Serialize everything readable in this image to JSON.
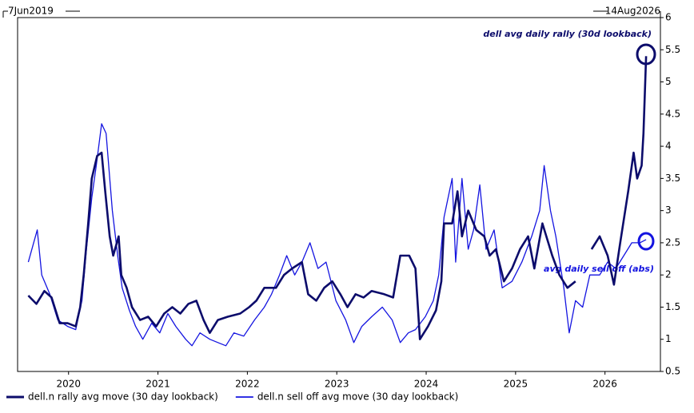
{
  "chart_data": {
    "type": "line",
    "range_start_label": "7Jun2019",
    "range_end_label": "14Aug2026",
    "annotations": [
      "dell avg daily rally (30d lookback)",
      "avg daily sell off (abs)"
    ],
    "xlim": [
      2019.43,
      2026.62
    ],
    "xticks": [
      2020,
      2021,
      2022,
      2023,
      2024,
      2025,
      2026
    ],
    "ylim": [
      0.5,
      6
    ],
    "yticks": [
      0.5,
      1,
      1.5,
      2,
      2.5,
      3,
      3.5,
      4,
      4.5,
      5,
      5.5,
      6
    ],
    "grid": false,
    "legend_position": "bottom",
    "series": [
      {
        "name": "dell.n rally avg move (30 day lookback)",
        "color": "#0c0c6b",
        "width": 2.6,
        "x": [
          2019.55,
          2019.64,
          2019.73,
          2019.81,
          2019.9,
          2019.99,
          2020.08,
          2020.13,
          2020.17,
          2020.22,
          2020.26,
          2020.32,
          2020.37,
          2020.41,
          2020.46,
          2020.5,
          2020.56,
          2020.59,
          2020.65,
          2020.71,
          2020.8,
          2020.89,
          2020.98,
          2021.07,
          2021.16,
          2021.25,
          2021.34,
          2021.43,
          2021.51,
          2021.58,
          2021.67,
          2021.78,
          2021.92,
          2022.02,
          2022.1,
          2022.19,
          2022.32,
          2022.41,
          2022.5,
          2022.61,
          2022.68,
          2022.77,
          2022.86,
          2022.95,
          2023.04,
          2023.12,
          2023.21,
          2023.3,
          2023.39,
          2023.53,
          2023.63,
          2023.71,
          2023.81,
          2023.88,
          2023.93,
          2024.02,
          2024.11,
          2024.17,
          2024.2,
          2024.29,
          2024.35,
          2024.4,
          2024.47,
          2024.56,
          2024.65,
          2024.71,
          2024.78,
          2024.87,
          2024.96,
          2025.05,
          2025.14,
          2025.21,
          2025.3,
          2025.41,
          2025.49,
          2025.58,
          2025.67,
          2025.76,
          2025.85,
          2025.94,
          2026.03,
          2026.1,
          2026.17,
          2026.26,
          2026.32,
          2026.36,
          2026.41,
          2026.43,
          2026.46
        ],
        "values": [
          1.68,
          1.55,
          1.75,
          1.65,
          1.25,
          1.25,
          1.2,
          1.5,
          2.0,
          2.8,
          3.5,
          3.85,
          3.9,
          3.3,
          2.6,
          2.3,
          2.6,
          2.0,
          1.8,
          1.5,
          1.3,
          1.35,
          1.2,
          1.4,
          1.5,
          1.4,
          1.55,
          1.6,
          1.3,
          1.1,
          1.3,
          1.35,
          1.4,
          1.5,
          1.6,
          1.8,
          1.8,
          2.0,
          2.1,
          2.2,
          1.7,
          1.6,
          1.8,
          1.9,
          1.7,
          1.5,
          1.7,
          1.65,
          1.75,
          1.7,
          1.65,
          2.3,
          2.3,
          2.1,
          1.0,
          1.2,
          1.45,
          1.9,
          2.8,
          2.8,
          3.3,
          2.6,
          3.0,
          2.7,
          2.6,
          2.3,
          2.4,
          1.9,
          2.1,
          2.4,
          2.6,
          2.1,
          2.8,
          2.3,
          2.0,
          1.8,
          1.9,
          null,
          2.4,
          2.6,
          2.3,
          1.85,
          2.5,
          3.3,
          3.9,
          3.5,
          3.7,
          4.2,
          5.4
        ]
      },
      {
        "name": "dell.n sell off avg move (30 day lookback)",
        "color": "#1414e0",
        "width": 1.3,
        "x": [
          2019.55,
          2019.61,
          2019.65,
          2019.7,
          2019.79,
          2019.88,
          2019.99,
          2020.08,
          2020.15,
          2020.2,
          2020.26,
          2020.31,
          2020.37,
          2020.42,
          2020.49,
          2020.55,
          2020.6,
          2020.68,
          2020.75,
          2020.83,
          2020.93,
          2021.02,
          2021.11,
          2021.2,
          2021.31,
          2021.38,
          2021.47,
          2021.58,
          2021.67,
          2021.76,
          2021.85,
          2021.96,
          2022.08,
          2022.19,
          2022.27,
          2022.36,
          2022.44,
          2022.53,
          2022.61,
          2022.7,
          2022.79,
          2022.88,
          2022.99,
          2023.1,
          2023.19,
          2023.28,
          2023.39,
          2023.51,
          2023.62,
          2023.71,
          2023.8,
          2023.88,
          2023.99,
          2024.08,
          2024.14,
          2024.2,
          2024.29,
          2024.33,
          2024.4,
          2024.47,
          2024.53,
          2024.6,
          2024.67,
          2024.76,
          2024.85,
          2024.96,
          2025.07,
          2025.18,
          2025.27,
          2025.32,
          2025.39,
          2025.45,
          2025.54,
          2025.6,
          2025.67,
          2025.75,
          2025.83,
          2025.94,
          2026.03,
          2026.12,
          2026.21,
          2026.3,
          2026.39,
          2026.46
        ],
        "values": [
          2.2,
          2.5,
          2.7,
          2.0,
          1.7,
          1.3,
          1.2,
          1.15,
          1.6,
          2.4,
          3.2,
          3.7,
          4.35,
          4.2,
          3.0,
          2.3,
          1.8,
          1.45,
          1.2,
          1.0,
          1.25,
          1.1,
          1.4,
          1.2,
          1.0,
          0.9,
          1.1,
          1.0,
          0.95,
          0.9,
          1.1,
          1.05,
          1.3,
          1.5,
          1.7,
          2.0,
          2.3,
          2.0,
          2.2,
          2.5,
          2.1,
          2.2,
          1.6,
          1.3,
          0.95,
          1.2,
          1.35,
          1.5,
          1.3,
          0.95,
          1.1,
          1.15,
          1.35,
          1.6,
          2.0,
          2.9,
          3.5,
          2.2,
          3.5,
          2.4,
          2.7,
          3.4,
          2.4,
          2.7,
          1.8,
          1.9,
          2.2,
          2.6,
          3.0,
          3.7,
          3.0,
          2.6,
          1.8,
          1.1,
          1.6,
          1.5,
          2.0,
          2.0,
          2.2,
          2.1,
          2.3,
          2.5,
          2.5,
          2.55
        ]
      }
    ]
  }
}
